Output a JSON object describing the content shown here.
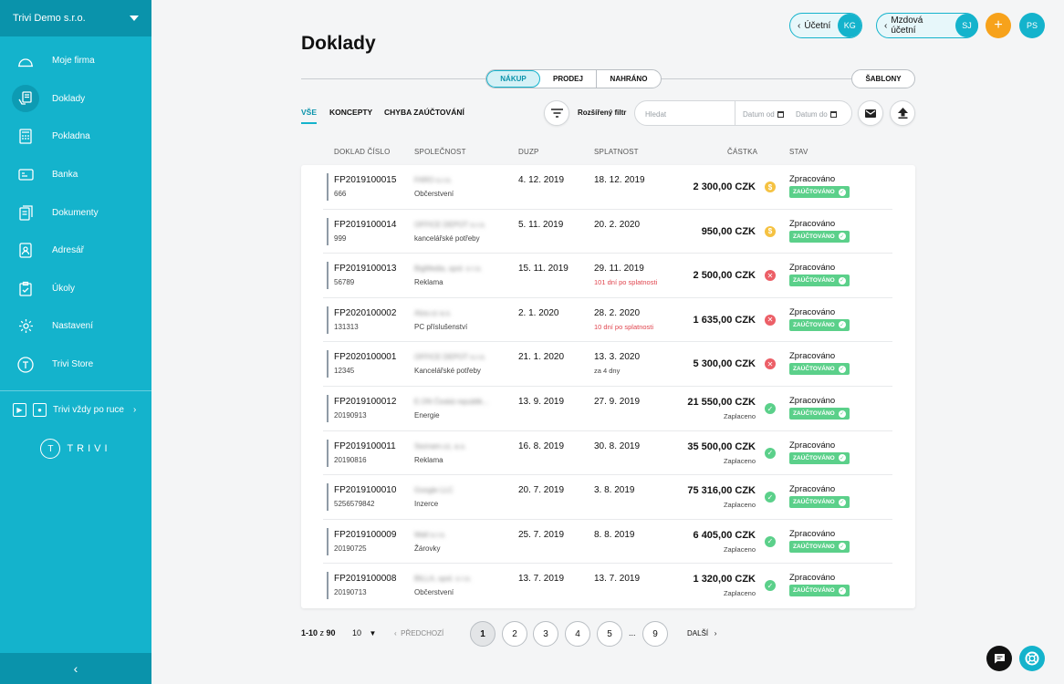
{
  "sidebar": {
    "company": "Trivi Demo s.r.o.",
    "items": [
      {
        "label": "Moje firma",
        "icon": "dashboard-icon"
      },
      {
        "label": "Doklady",
        "icon": "documents-hand-icon"
      },
      {
        "label": "Pokladna",
        "icon": "cash-register-icon"
      },
      {
        "label": "Banka",
        "icon": "bank-card-icon"
      },
      {
        "label": "Dokumenty",
        "icon": "file-icon"
      },
      {
        "label": "Adresář",
        "icon": "contacts-icon"
      },
      {
        "label": "Úkoly",
        "icon": "clipboard-check-icon"
      },
      {
        "label": "Nastavení",
        "icon": "gear-icon"
      },
      {
        "label": "Trivi Store",
        "icon": "trivi-store-icon"
      }
    ],
    "app_promo": "Trivi vždy po ruce",
    "logo_text": "TRIVI",
    "logo_letter": "T"
  },
  "header": {
    "accountant_label": "Účetní",
    "accountant_initials": "KG",
    "payroll_label": "Mzdová účetní",
    "payroll_initials": "SJ",
    "add": "+",
    "user_initials": "PS",
    "brand_color": "#14b3cc",
    "add_color": "#f7a21b"
  },
  "page_title": "Doklady",
  "main_tabs": [
    "NÁKUP",
    "PRODEJ",
    "NAHRÁNO"
  ],
  "templates_label": "ŠABLONY",
  "filter_tabs": [
    "VŠE",
    "KONCEPTY",
    "CHYBA ZAÚČTOVÁNÍ"
  ],
  "advanced_filter": "Rozšířený filtr",
  "search": {
    "placeholder": "Hledat",
    "date_from": "Datum od",
    "date_to": "Datum do"
  },
  "columns": [
    "DOKLAD ČÍSLO",
    "SPOLEČNOST",
    "DUZP",
    "SPLATNOST",
    "ČÁSTKA",
    "STAV"
  ],
  "rows": [
    {
      "number": "FP2019100015",
      "code": "666",
      "company": "FARO s.r.o.",
      "category": "Občerstvení",
      "duzp": "4. 12. 2019",
      "due": "18. 12. 2019",
      "due_note": "",
      "due_note_red": false,
      "amount": "2 300,00 CZK",
      "paid": "",
      "icon": "coin",
      "status": "Zpracováno",
      "badge": "ZAÚČTOVÁNO"
    },
    {
      "number": "FP2019100014",
      "code": "999",
      "company": "OFFICE DEPOT s.r.o.",
      "category": "kancelářské potřeby",
      "duzp": "5. 11. 2019",
      "due": "20. 2. 2020",
      "due_note": "",
      "due_note_red": false,
      "amount": "950,00 CZK",
      "paid": "",
      "icon": "coin",
      "status": "Zpracováno",
      "badge": "ZAÚČTOVÁNO"
    },
    {
      "number": "FP2019100013",
      "code": "56789",
      "company": "BigMedia, spol. s r.o.",
      "category": "Reklama",
      "duzp": "15. 11. 2019",
      "due": "29. 11. 2019",
      "due_note": "101 dní po splatnosti",
      "due_note_red": true,
      "amount": "2 500,00 CZK",
      "paid": "",
      "icon": "error",
      "status": "Zpracováno",
      "badge": "ZAÚČTOVÁNO"
    },
    {
      "number": "FP2020100002",
      "code": "131313",
      "company": "Alza.cz a.s.",
      "category": "PC příslušenství",
      "duzp": "2. 1. 2020",
      "due": "28. 2. 2020",
      "due_note": "10 dní po splatnosti",
      "due_note_red": true,
      "amount": "1 635,00 CZK",
      "paid": "",
      "icon": "error",
      "status": "Zpracováno",
      "badge": "ZAÚČTOVÁNO"
    },
    {
      "number": "FP2020100001",
      "code": "12345",
      "company": "OFFICE DEPOT s.r.o.",
      "category": "Kancelářské potřeby",
      "duzp": "21. 1. 2020",
      "due": "13. 3. 2020",
      "due_note": "za 4 dny",
      "due_note_red": false,
      "amount": "5 300,00 CZK",
      "paid": "",
      "icon": "error",
      "status": "Zpracováno",
      "badge": "ZAÚČTOVÁNO"
    },
    {
      "number": "FP2019100012",
      "code": "20190913",
      "company": "E.ON Česká republik...",
      "category": "Energie",
      "duzp": "13. 9. 2019",
      "due": "27. 9. 2019",
      "due_note": "",
      "due_note_red": false,
      "amount": "21 550,00 CZK",
      "paid": "Zaplaceno",
      "icon": "ok",
      "status": "Zpracováno",
      "badge": "ZAÚČTOVÁNO"
    },
    {
      "number": "FP2019100011",
      "code": "20190816",
      "company": "Seznam.cz, a.s.",
      "category": "Reklama",
      "duzp": "16. 8. 2019",
      "due": "30. 8. 2019",
      "due_note": "",
      "due_note_red": false,
      "amount": "35 500,00 CZK",
      "paid": "Zaplaceno",
      "icon": "ok",
      "status": "Zpracováno",
      "badge": "ZAÚČTOVÁNO"
    },
    {
      "number": "FP2019100010",
      "code": "5256579842",
      "company": "Google LLC",
      "category": "Inzerce",
      "duzp": "20. 7. 2019",
      "due": "3. 8. 2019",
      "due_note": "",
      "due_note_red": false,
      "amount": "75 316,00 CZK",
      "paid": "Zaplaceno",
      "icon": "ok",
      "status": "Zpracováno",
      "badge": "ZAÚČTOVÁNO"
    },
    {
      "number": "FP2019100009",
      "code": "20190725",
      "company": "Wall s.r.o.",
      "category": "Žárovky",
      "duzp": "25. 7. 2019",
      "due": "8. 8. 2019",
      "due_note": "",
      "due_note_red": false,
      "amount": "6 405,00 CZK",
      "paid": "Zaplaceno",
      "icon": "ok",
      "status": "Zpracováno",
      "badge": "ZAÚČTOVÁNO"
    },
    {
      "number": "FP2019100008",
      "code": "20190713",
      "company": "BILLA, spol. s r.o.",
      "category": "Občerstvení",
      "duzp": "13. 7. 2019",
      "due": "13. 7. 2019",
      "due_note": "",
      "due_note_red": false,
      "amount": "1 320,00 CZK",
      "paid": "Zaplaceno",
      "icon": "ok",
      "status": "Zpracováno",
      "badge": "ZAÚČTOVÁNO"
    }
  ],
  "pagination": {
    "range": "1-10",
    "of": "z",
    "total": "90",
    "per_page": "10",
    "prev": "PŘEDCHOZÍ",
    "next": "DALŠÍ",
    "pages": [
      "1",
      "2",
      "3",
      "4",
      "5",
      "9"
    ],
    "ellipsis": "...",
    "current": "1"
  },
  "colors": {
    "coin": "#f5c242",
    "error": "#ec5f67",
    "ok": "#5bd08a",
    "red_text": "#e0454e"
  }
}
